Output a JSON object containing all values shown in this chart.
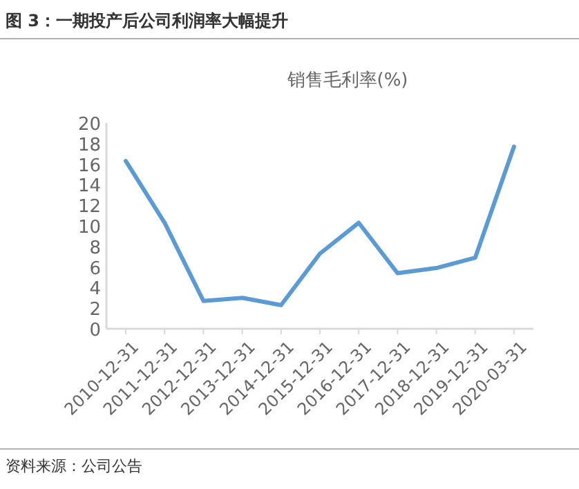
{
  "chart_data": {
    "type": "line",
    "title": "图 3：一期投产后公司利润率大幅提升",
    "subtitle": "销售毛利率(%)",
    "categories": [
      "2010-12-31",
      "2011-12-31",
      "2012-12-31",
      "2013-12-31",
      "2014-12-31",
      "2015-12-31",
      "2016-12-31",
      "2017-12-31",
      "2018-12-31",
      "2019-12-31",
      "2020-03-31"
    ],
    "series": [
      {
        "color": "#5b9bd5",
        "values": [
          16.3,
          10.3,
          2.7,
          3.0,
          2.3,
          7.3,
          10.3,
          5.4,
          5.9,
          6.9,
          17.7
        ]
      }
    ],
    "ylim": [
      0,
      20
    ],
    "yticks": [
      0,
      2,
      4,
      6,
      8,
      10,
      12,
      14,
      16,
      18,
      20
    ],
    "grid": false,
    "marker": "none",
    "line_style": "solid",
    "annotations": [
      "资料来源：公司公告"
    ]
  }
}
